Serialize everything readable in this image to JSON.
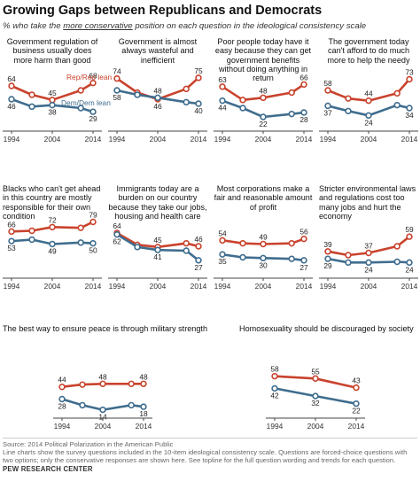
{
  "title": "Growing Gaps between Republicans and Democrats",
  "subtitle": {
    "prefix": "% who take the ",
    "emphasis": "more conservative",
    "suffix": " position on each question in the ideological consistency scale"
  },
  "colors": {
    "rep": "#c9432d",
    "dem": "#3f6d8e",
    "axis": "#444444"
  },
  "series_names": {
    "rep": "Rep/Rep lean",
    "dem": "Dem/Dem lean"
  },
  "x_ticks": [
    "1994",
    "2004",
    "2014"
  ],
  "chart_data": [
    {
      "type": "line",
      "title": "Government regulation of business usually does more harm than good",
      "x": [
        1994,
        1999,
        2004,
        2011,
        2014
      ],
      "series": [
        {
          "name": "Rep/Rep lean",
          "values": [
            64,
            52,
            45,
            58,
            68
          ]
        },
        {
          "name": "Dem/Dem lean",
          "values": [
            46,
            36,
            38,
            34,
            29
          ]
        }
      ],
      "labels": {
        "rep": [
          64,
          45,
          68
        ],
        "dem": [
          46,
          38,
          29
        ]
      }
    },
    {
      "type": "line",
      "title": "Government is almost always wasteful and inefficient",
      "x": [
        1994,
        1999,
        2004,
        2011,
        2014
      ],
      "series": [
        {
          "name": "Rep/Rep lean",
          "values": [
            74,
            55,
            46,
            60,
            75
          ]
        },
        {
          "name": "Dem/Dem lean",
          "values": [
            58,
            52,
            48,
            42,
            40
          ]
        }
      ],
      "labels": {
        "rep": [
          74,
          46,
          75
        ],
        "dem": [
          58,
          48,
          40
        ]
      }
    },
    {
      "type": "line",
      "title": "Poor people today have it easy because they can get government benefits without doing anything in return",
      "x": [
        1994,
        1999,
        2004,
        2011,
        2014
      ],
      "series": [
        {
          "name": "Rep/Rep lean",
          "values": [
            63,
            45,
            48,
            55,
            66
          ]
        },
        {
          "name": "Dem/Dem lean",
          "values": [
            44,
            34,
            22,
            26,
            28
          ]
        }
      ],
      "labels": {
        "rep": [
          63,
          48,
          66
        ],
        "dem": [
          44,
          22,
          28
        ]
      }
    },
    {
      "type": "line",
      "title": "The government today can't afford to do much more to help the needy",
      "x": [
        1994,
        1999,
        2004,
        2011,
        2014
      ],
      "series": [
        {
          "name": "Rep/Rep lean",
          "values": [
            58,
            47,
            44,
            54,
            73
          ]
        },
        {
          "name": "Dem/Dem lean",
          "values": [
            37,
            30,
            24,
            38,
            34
          ]
        }
      ],
      "labels": {
        "rep": [
          58,
          44,
          73
        ],
        "dem": [
          37,
          24,
          34
        ]
      }
    },
    {
      "type": "line",
      "title": "Blacks who can't get ahead in this country are mostly responsible for their own condition",
      "x": [
        1994,
        1999,
        2004,
        2011,
        2014
      ],
      "series": [
        {
          "name": "Rep/Rep lean",
          "values": [
            66,
            67,
            72,
            71,
            79
          ]
        },
        {
          "name": "Dem/Dem lean",
          "values": [
            53,
            55,
            49,
            51,
            50
          ]
        }
      ],
      "labels": {
        "rep": [
          66,
          72,
          79
        ],
        "dem": [
          53,
          49,
          50
        ]
      }
    },
    {
      "type": "line",
      "title": "Immigrants today are a burden on our country because they take our jobs, housing and health care",
      "x": [
        1994,
        1999,
        2004,
        2011,
        2014
      ],
      "series": [
        {
          "name": "Rep/Rep lean",
          "values": [
            64,
            48,
            45,
            50,
            46
          ]
        },
        {
          "name": "Dem/Dem lean",
          "values": [
            62,
            45,
            41,
            40,
            27
          ]
        }
      ],
      "labels": {
        "rep": [
          64,
          45,
          46
        ],
        "dem": [
          62,
          41,
          27
        ]
      }
    },
    {
      "type": "line",
      "title": "Most corporations make a fair and reasonable amount of profit",
      "x": [
        1994,
        1999,
        2004,
        2011,
        2014
      ],
      "series": [
        {
          "name": "Rep/Rep lean",
          "values": [
            54,
            50,
            49,
            50,
            56
          ]
        },
        {
          "name": "Dem/Dem lean",
          "values": [
            35,
            31,
            30,
            29,
            27
          ]
        }
      ],
      "labels": {
        "rep": [
          54,
          49,
          56
        ],
        "dem": [
          35,
          30,
          27
        ]
      }
    },
    {
      "type": "line",
      "title": "Stricter environmental laws and regulations cost too many jobs and hurt the economy",
      "x": [
        1994,
        1999,
        2004,
        2011,
        2014
      ],
      "series": [
        {
          "name": "Rep/Rep lean",
          "values": [
            39,
            34,
            37,
            46,
            59
          ]
        },
        {
          "name": "Dem/Dem lean",
          "values": [
            29,
            24,
            24,
            25,
            24
          ]
        }
      ],
      "labels": {
        "rep": [
          39,
          37,
          59
        ],
        "dem": [
          29,
          24,
          24
        ]
      }
    },
    {
      "type": "line",
      "title": "The best way to ensure peace is through military strength",
      "x": [
        1994,
        1999,
        2004,
        2011,
        2014
      ],
      "series": [
        {
          "name": "Rep/Rep lean",
          "values": [
            44,
            47,
            48,
            48,
            48
          ]
        },
        {
          "name": "Dem/Dem lean",
          "values": [
            28,
            20,
            14,
            20,
            18
          ]
        }
      ],
      "labels": {
        "rep": [
          44,
          48,
          48
        ],
        "dem": [
          28,
          14,
          18
        ]
      }
    },
    {
      "type": "line",
      "title": "Homosexuality should be discouraged by society",
      "x": [
        1994,
        2004,
        2014
      ],
      "series": [
        {
          "name": "Rep/Rep lean",
          "values": [
            58,
            55,
            43
          ]
        },
        {
          "name": "Dem/Dem lean",
          "values": [
            42,
            32,
            22
          ]
        }
      ],
      "labels": {
        "rep": [
          58,
          55,
          43
        ],
        "dem": [
          42,
          32,
          22
        ]
      }
    }
  ],
  "footer": {
    "source": "Source: 2014 Political Polarization in the American Public",
    "note": "Line charts show the survey questions included in the 10-item ideological consistency scale. Questions are forced-choice questions with two options; only the conservative responses are shown here. See topline for the full question wording and trends for each question.",
    "org": "PEW RESEARCH CENTER"
  }
}
